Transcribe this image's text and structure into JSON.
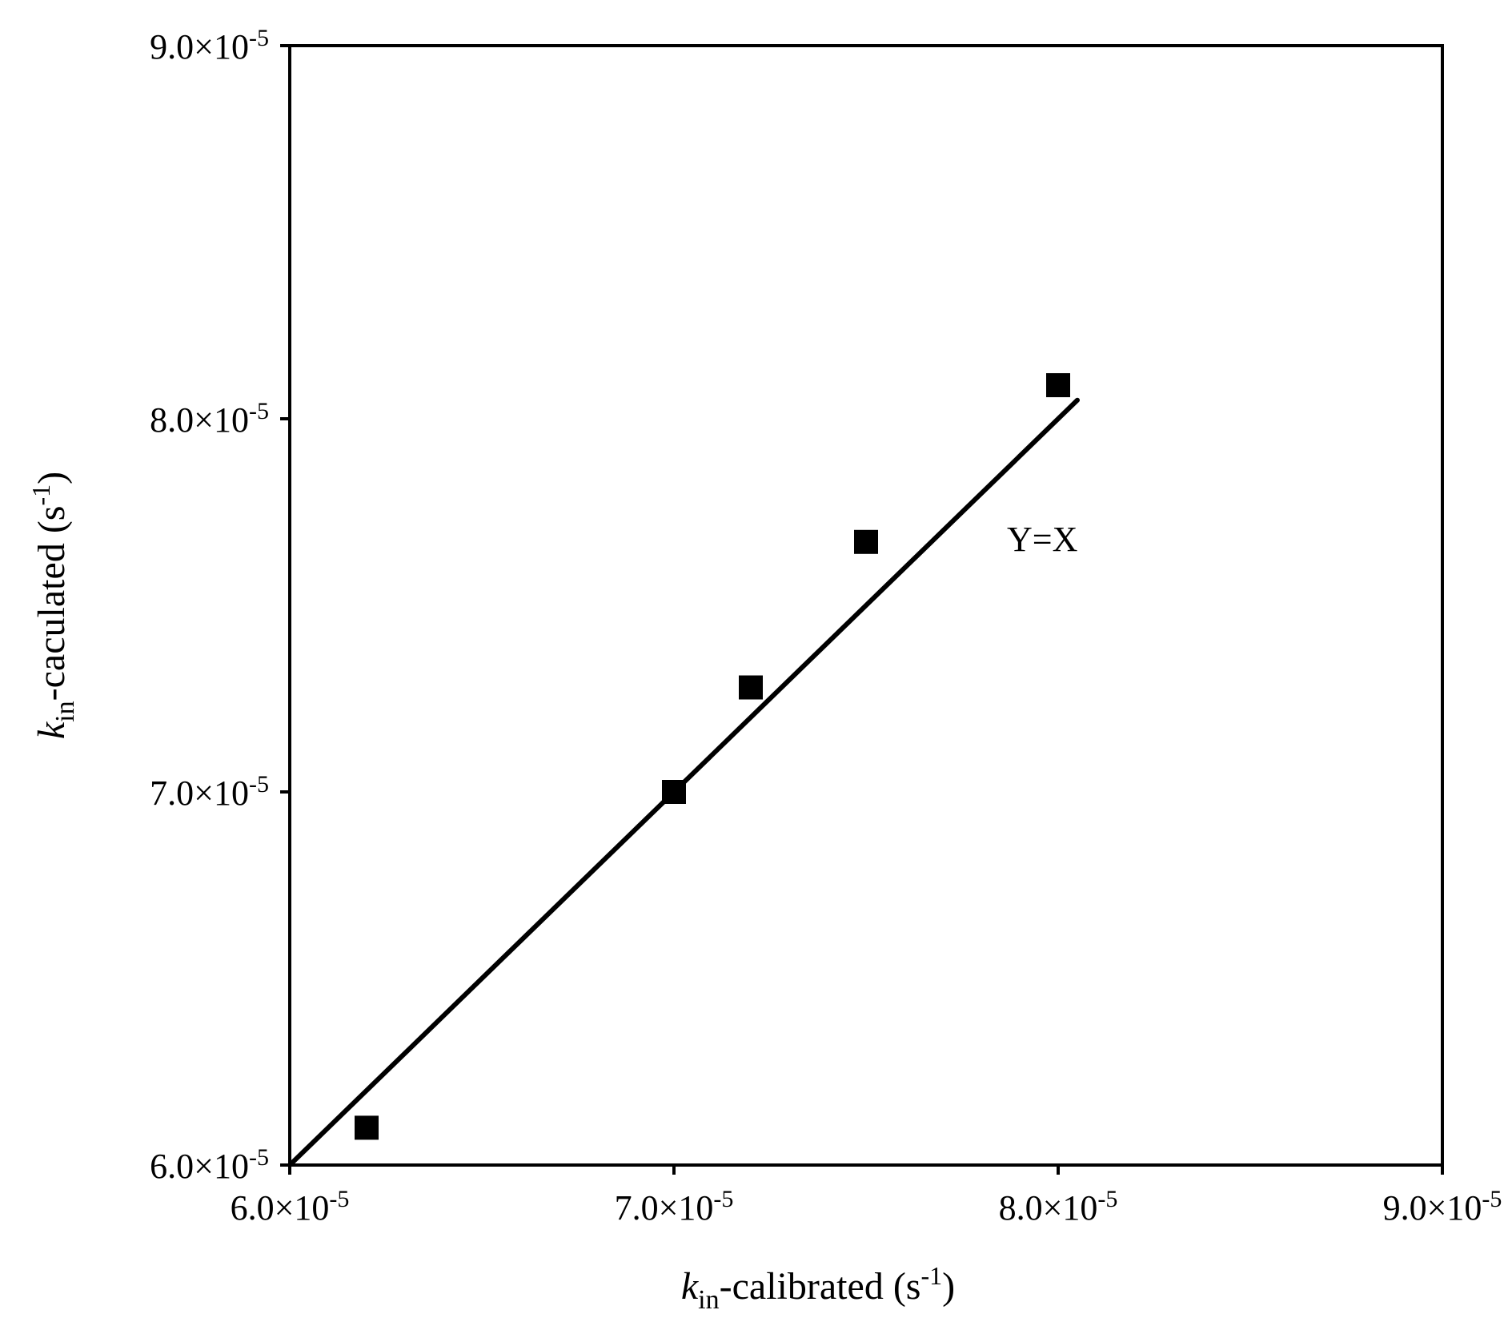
{
  "chart_data": {
    "type": "scatter",
    "title": "",
    "x_axis": {
      "label_italic": "k",
      "label_subscript": "in",
      "label_main": "-calibrated (s",
      "label_superscript": "-1",
      "label_end": ")",
      "range": [
        6e-05,
        9e-05
      ],
      "ticks": [
        6e-05,
        7e-05,
        8e-05,
        9e-05
      ],
      "tick_labels": [
        "6.0×10",
        "7.0×10",
        "8.0×10",
        "9.0×10"
      ],
      "tick_exponent": "-5"
    },
    "y_axis": {
      "label_italic": "k",
      "label_subscript": "in",
      "label_main": "-caculated (s",
      "label_superscript": "-1",
      "label_end": ")",
      "range": [
        6e-05,
        9e-05
      ],
      "ticks": [
        6e-05,
        7e-05,
        8e-05,
        9e-05
      ],
      "tick_labels": [
        "6.0×10",
        "7.0×10",
        "8.0×10",
        "9.0×10"
      ],
      "tick_exponent": "-5"
    },
    "grid": false,
    "series": [
      {
        "marker": "square",
        "color": "#000000",
        "points": [
          {
            "x": 6.2e-05,
            "y": 6.1e-05
          },
          {
            "x": 7e-05,
            "y": 7e-05
          },
          {
            "x": 7.2e-05,
            "y": 7.28e-05
          },
          {
            "x": 7.5e-05,
            "y": 7.67e-05
          },
          {
            "x": 8e-05,
            "y": 8.09e-05
          }
        ]
      }
    ],
    "reference_line": {
      "label": "Y=X",
      "color": "#000000",
      "x_start": 6e-05,
      "x_end": 8.05e-05
    }
  }
}
